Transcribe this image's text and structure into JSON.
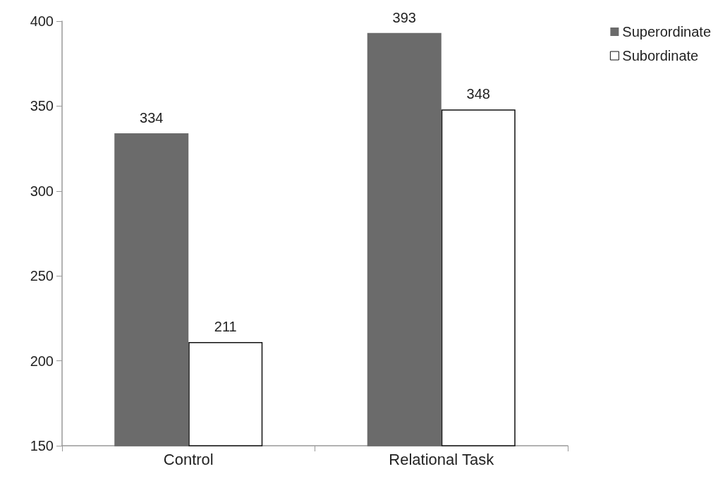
{
  "chart_data": {
    "type": "bar",
    "categories": [
      "Control",
      "Relational Task"
    ],
    "series": [
      {
        "name": "Superordinate",
        "color": "#6b6b6b",
        "values": [
          334,
          393
        ]
      },
      {
        "name": "Subordinate",
        "color": "#ffffff",
        "values": [
          211,
          348
        ]
      }
    ],
    "ylim": [
      150,
      400
    ],
    "yticks": [
      150,
      200,
      250,
      300,
      350,
      400
    ],
    "grid": false,
    "legend": "top right",
    "data_labels": true
  }
}
